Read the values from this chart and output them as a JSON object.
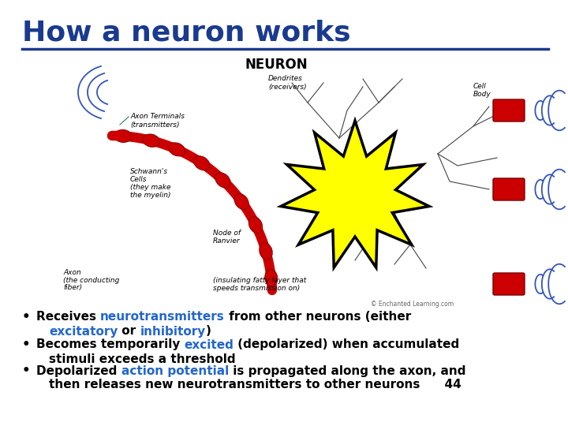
{
  "title": "How a neuron works",
  "title_color": "#1a3a8f",
  "title_fontsize": 26,
  "underline_color": "#1a3a8f",
  "bg_color": "#ffffff",
  "neuron_label": "NEURON",
  "axon_color": "#cc0000",
  "yellow_color": "#ffff00",
  "blue_wave_color": "#3355bb",
  "label_fontsize": 6.5,
  "bullet_fontsize": 11,
  "bullet_lines": [
    [
      [
        "Receives ",
        "#000000"
      ],
      [
        "neurotransmitters",
        "#2266cc"
      ],
      [
        " from other neurons (either",
        "#000000"
      ]
    ],
    [
      [
        "excitatory",
        "#2266cc"
      ],
      [
        " or ",
        "#000000"
      ],
      [
        "inhibitory",
        "#2266cc"
      ],
      [
        ")",
        "#000000"
      ]
    ],
    [
      [
        "Becomes temporarily ",
        "#000000"
      ],
      [
        "excited",
        "#2266cc"
      ],
      [
        " (depolarized) when accumulated",
        "#000000"
      ]
    ],
    [
      [
        "stimuli exceeds a threshold",
        "#000000"
      ]
    ],
    [
      [
        "Depolarized ",
        "#000000"
      ],
      [
        "action potential",
        "#2266cc"
      ],
      [
        " is propagated along the axon, and",
        "#000000"
      ]
    ],
    [
      [
        "then releases new neurotransmitters to other neurons",
        "#000000"
      ],
      [
        "      44",
        "#000000"
      ]
    ]
  ],
  "bullet_markers": [
    true,
    false,
    true,
    false,
    true,
    false
  ]
}
